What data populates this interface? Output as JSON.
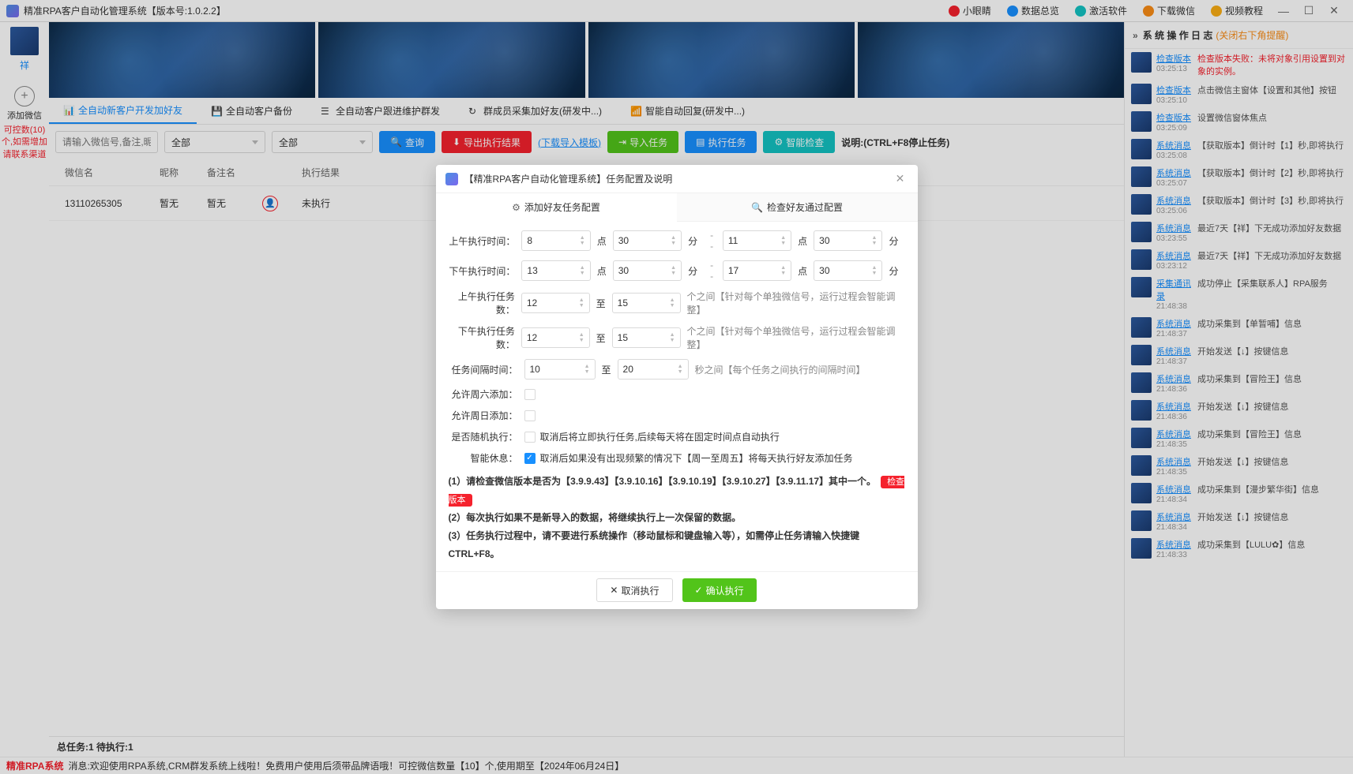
{
  "titlebar": {
    "title": "精准RPA客户自动化管理系统【版本号:1.0.2.2】",
    "links": [
      {
        "label": "小眼睛",
        "color": "#f5222d"
      },
      {
        "label": "数据总览",
        "color": "#1890ff"
      },
      {
        "label": "激活软件",
        "color": "#13c2c2"
      },
      {
        "label": "下载微信",
        "color": "#fa8c16"
      },
      {
        "label": "视频教程",
        "color": "#faad14"
      }
    ]
  },
  "sidebar": {
    "username": "祥",
    "add_label": "添加微信",
    "red_l1": "可控数(10)",
    "red_l2": "个,如需增加",
    "red_l3": "请联系渠道"
  },
  "tabs": [
    {
      "label": "全自动新客户开发加好友",
      "active": true
    },
    {
      "label": "全自动客户备份",
      "active": false
    },
    {
      "label": "全自动客户跟进维护群发",
      "active": false
    },
    {
      "label": "群成员采集加好友(研发中...)",
      "active": false
    },
    {
      "label": "智能自动回复(研发中...)",
      "active": false
    }
  ],
  "toolbar": {
    "search_ph": "请输入微信号,备注,昵称",
    "sel1": "全部",
    "sel2": "全部",
    "btn_query": "查询",
    "btn_export": "导出执行结果",
    "link_tpl": "(下载导入模板)",
    "btn_import": "导入任务",
    "btn_exec": "执行任务",
    "btn_check": "智能检查",
    "hint": "说明:(CTRL+F8停止任务)"
  },
  "table": {
    "cols": [
      "微信名",
      "昵称",
      "备注名",
      "",
      "执行结果"
    ],
    "row": {
      "c1": "13110265305",
      "c2": "暂无",
      "c3": "暂无",
      "c5": "未执行"
    }
  },
  "status": "总任务:1 待执行:1",
  "logpanel": {
    "title": "系 统 操 作 日 志",
    "hint": "(关闭右下角提醒)",
    "rows": [
      {
        "type": "检查版本",
        "time": "03:25:13",
        "msg": "检查版本失败：未将对象引用设置到对象的实例。",
        "err": true
      },
      {
        "type": "检查版本",
        "time": "03:25:10",
        "msg": "点击微信主窗体【设置和其他】按钮"
      },
      {
        "type": "检查版本",
        "time": "03:25:09",
        "msg": "设置微信窗体焦点"
      },
      {
        "type": "系统消息",
        "time": "03:25:08",
        "msg": "【获取版本】倒计时【1】秒,即将执行"
      },
      {
        "type": "系统消息",
        "time": "03:25:07",
        "msg": "【获取版本】倒计时【2】秒,即将执行"
      },
      {
        "type": "系统消息",
        "time": "03:25:06",
        "msg": "【获取版本】倒计时【3】秒,即将执行"
      },
      {
        "type": "系统消息",
        "time": "03:23:55",
        "msg": "最近7天【祥】下无成功添加好友数据"
      },
      {
        "type": "系统消息",
        "time": "03:23:12",
        "msg": "最近7天【祥】下无成功添加好友数据"
      },
      {
        "type": "采集通讯录",
        "time": "21:48:38",
        "msg": "成功停止【采集联系人】RPA服务"
      },
      {
        "type": "系统消息",
        "time": "21:48:37",
        "msg": "成功采集到【单暂哺】信息"
      },
      {
        "type": "系统消息",
        "time": "21:48:37",
        "msg": "开始发送【↓】按键信息"
      },
      {
        "type": "系统消息",
        "time": "21:48:36",
        "msg": "成功采集到【冒险王】信息"
      },
      {
        "type": "系统消息",
        "time": "21:48:36",
        "msg": "开始发送【↓】按键信息"
      },
      {
        "type": "系统消息",
        "time": "21:48:35",
        "msg": "成功采集到【冒险王】信息"
      },
      {
        "type": "系统消息",
        "time": "21:48:35",
        "msg": "开始发送【↓】按键信息"
      },
      {
        "type": "系统消息",
        "time": "21:48:34",
        "msg": "成功采集到【漫步繁华街】信息"
      },
      {
        "type": "系统消息",
        "time": "21:48:34",
        "msg": "开始发送【↓】按键信息"
      },
      {
        "type": "系统消息",
        "time": "21:48:33",
        "msg": "成功采集到【LULU✿】信息"
      }
    ]
  },
  "modal": {
    "title": "【精准RPA客户自动化管理系统】任务配置及说明",
    "tab1": "添加好友任务配置",
    "tab2": "检查好友通过配置",
    "lbl_am_time": "上午执行时间：",
    "lbl_pm_time": "下午执行时间：",
    "lbl_am_cnt": "上午执行任务数：",
    "lbl_pm_cnt": "下午执行任务数：",
    "lbl_interval": "任务间隔时间：",
    "lbl_sat": "允许周六添加：",
    "lbl_sun": "允许周日添加：",
    "lbl_rand": "是否随机执行：",
    "lbl_smart": "智能休息：",
    "am_h1": "8",
    "am_m1": "30",
    "am_h2": "11",
    "am_m2": "30",
    "pm_h1": "13",
    "pm_m1": "30",
    "pm_h2": "17",
    "pm_m2": "30",
    "unit_dian": "点",
    "unit_fen": "分",
    "dash": "--",
    "am_cnt1": "12",
    "am_cnt2": "15",
    "pm_cnt1": "12",
    "pm_cnt2": "15",
    "unit_zhi": "至",
    "note_cnt": "个之间【针对每个单独微信号，运行过程会智能调整】",
    "iv1": "10",
    "iv2": "20",
    "note_iv": "秒之间【每个任务之间执行的间隔时间】",
    "rand_note": "取消后将立即执行任务,后续每天将在固定时间点自动执行",
    "smart_note": "取消后如果没有出现频繁的情况下【周一至周五】将每天执行好友添加任务",
    "ins1": "(1）请检查微信版本是否为【3.9.9.43】【3.9.10.16】【3.9.10.19】【3.9.10.27】【3.9.11.17】其中一个。",
    "chkver": "检查版本",
    "ins2": "(2）每次执行如果不是新导入的数据，将继续执行上一次保留的数据。",
    "ins3": "(3）任务执行过程中，请不要进行系统操作（移动鼠标和键盘输入等），如需停止任务请输入快捷键CTRL+F8。",
    "btn_cancel": "取消执行",
    "btn_ok": "确认执行"
  },
  "footer": {
    "brand": "精准RPA系统",
    "msg": "消息:欢迎使用RPA系统,CRM群发系统上线啦！免费用户使用后须带品牌语哦！可控微信数量【10】个,使用期至【2024年06月24日】"
  }
}
